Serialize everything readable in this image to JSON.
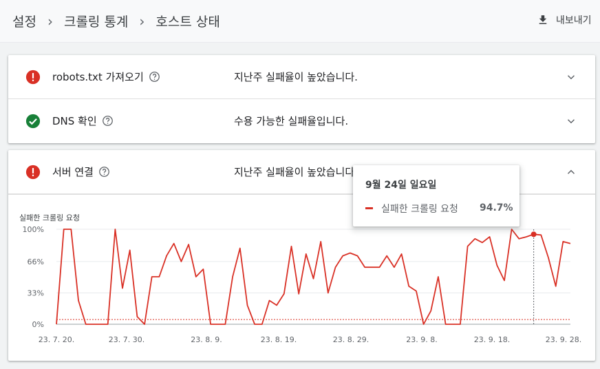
{
  "breadcrumb": {
    "items": [
      "설정",
      "크롤링 통계",
      "호스트 상태"
    ]
  },
  "header": {
    "export_label": "내보내기"
  },
  "status_rows": [
    {
      "name": "robots.txt 가져오기",
      "status": "error",
      "summary": "지난주 실패율이 높았습니다."
    },
    {
      "name": "DNS 확인",
      "status": "ok",
      "summary": "수용 가능한 실패율입니다."
    },
    {
      "name": "서버 연결",
      "status": "error",
      "summary": "지난주 실패율이 높았습니다."
    }
  ],
  "colors": {
    "error": "#d93025",
    "ok": "#188038",
    "series": "#d93025",
    "threshold": "#d93025"
  },
  "tooltip": {
    "date": "9월 24일 일요일",
    "series_name": "실패한 크롤링 요청",
    "value": "94.7%"
  },
  "chart_data": {
    "type": "line",
    "title": "실패한 크롤링 요청",
    "yticks": [
      "100%",
      "66%",
      "33%",
      "0%"
    ],
    "ytick_values": [
      100,
      66,
      33,
      0
    ],
    "ylim": [
      0,
      100
    ],
    "xticks": [
      "23. 7. 20.",
      "23. 7. 30.",
      "23. 8. 9.",
      "23. 8. 19.",
      "23. 8. 29.",
      "23. 9. 8.",
      "23. 9. 18.",
      "23. 9. 28."
    ],
    "threshold": 5,
    "highlight_date": "9월 24일",
    "series": [
      {
        "name": "실패한 크롤링 요청",
        "values": [
          0,
          100,
          100,
          25,
          0,
          0,
          0,
          0,
          100,
          38,
          78,
          8,
          0,
          50,
          50,
          72,
          85,
          66,
          84,
          50,
          58,
          0,
          0,
          0,
          50,
          80,
          20,
          0,
          0,
          25,
          20,
          32,
          82,
          32,
          74,
          48,
          87,
          33,
          60,
          72,
          75,
          72,
          60,
          60,
          60,
          72,
          60,
          74,
          40,
          35,
          0,
          14,
          50,
          0,
          0,
          0,
          82,
          90,
          86,
          92,
          62,
          46,
          100,
          90,
          92,
          94.7,
          94,
          70,
          40,
          87,
          85
        ]
      }
    ]
  }
}
